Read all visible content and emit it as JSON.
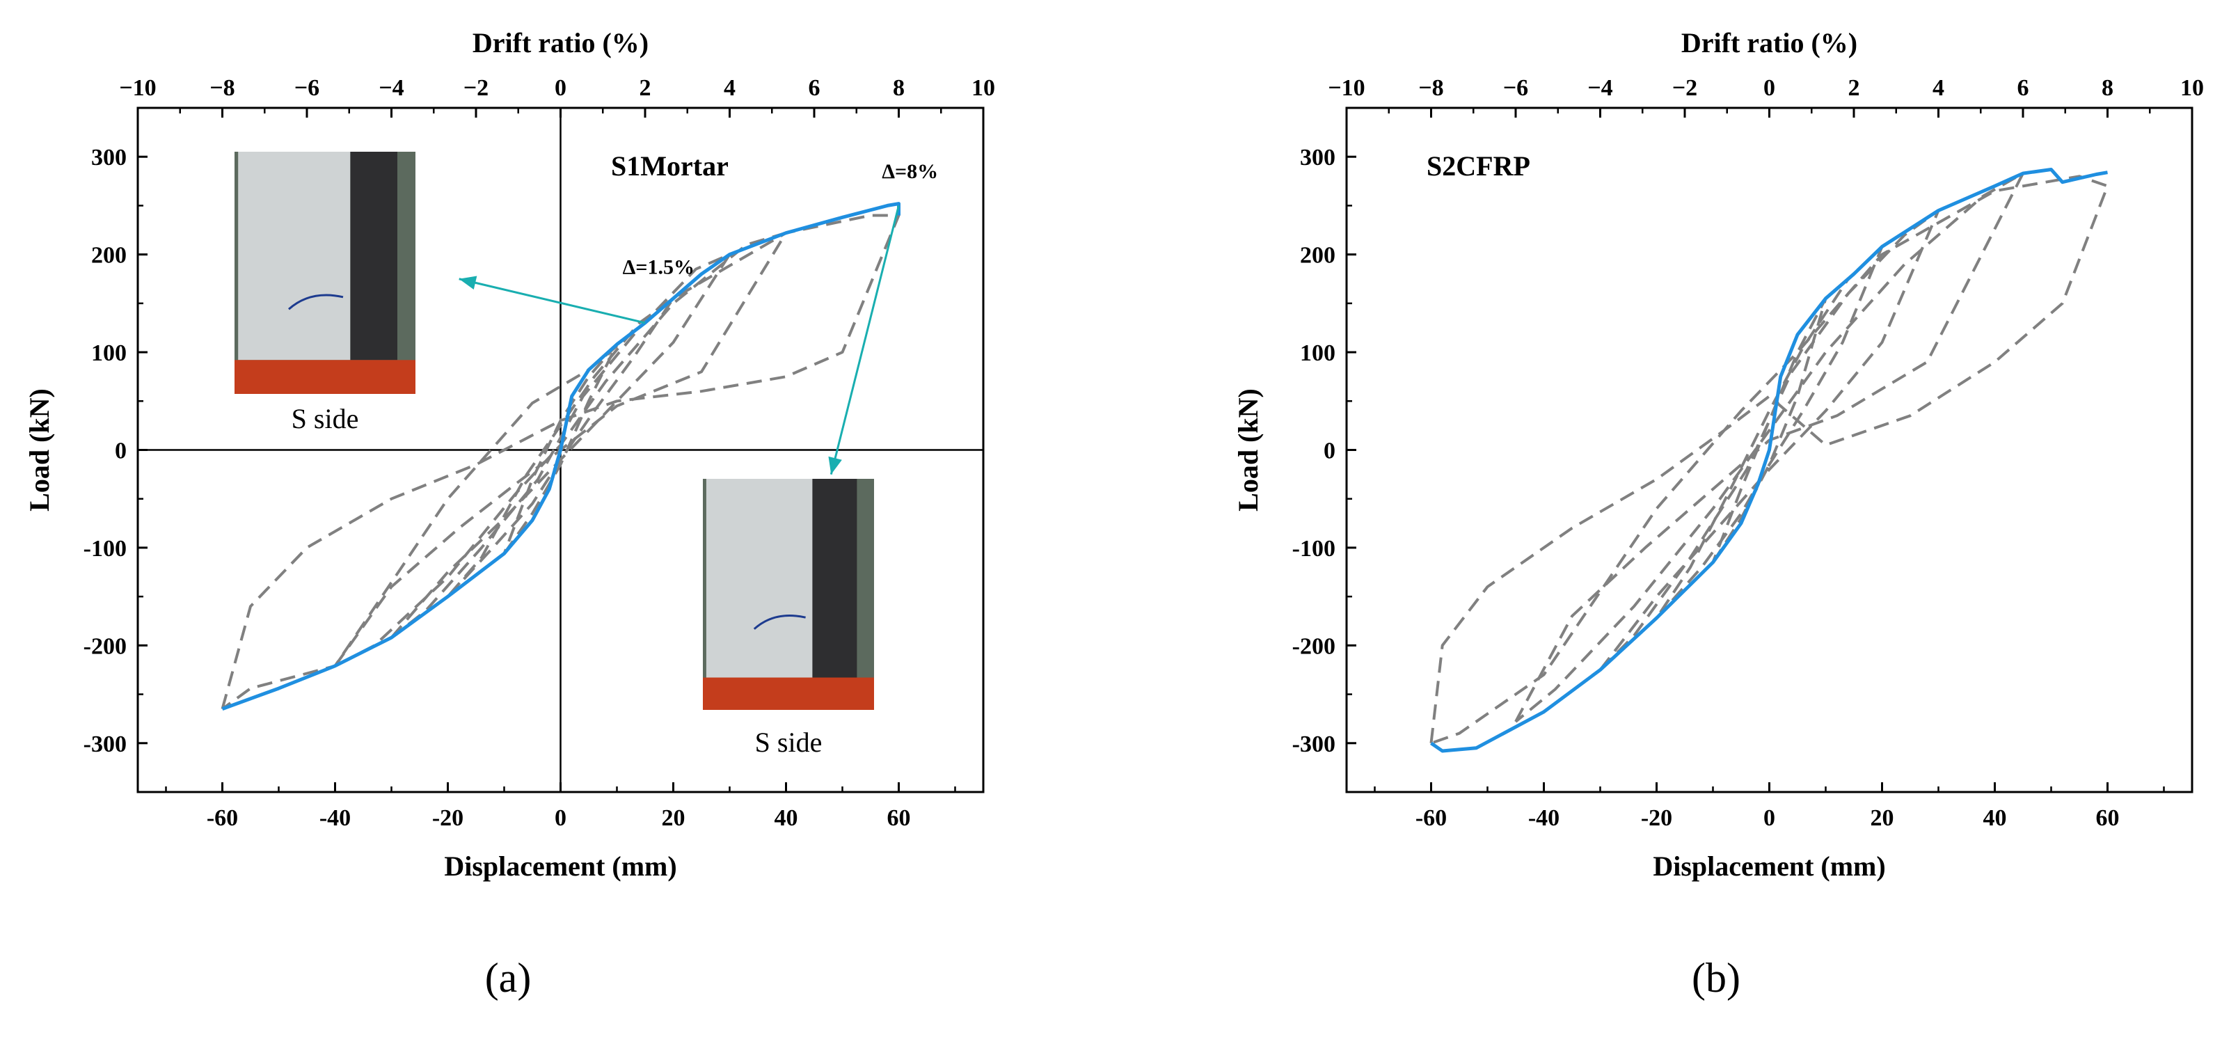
{
  "colors": {
    "envelope": "#1f8fe0",
    "hysteresis": "#808080",
    "arrow": "#19aeb0",
    "axis": "#000000"
  },
  "chart_data": [
    {
      "type": "line",
      "panel_label": "(a)",
      "specimen_label": "S1Mortar",
      "xlabel": "Displacement (mm)",
      "ylabel": "Load (kN)",
      "x2label": "Drift ratio (%)",
      "xlim": [
        -75,
        75
      ],
      "ylim": [
        -350,
        350
      ],
      "x2lim": [
        -10,
        10
      ],
      "xticks": [
        "-60",
        "-40",
        "-20",
        "0",
        "20",
        "40",
        "60"
      ],
      "yticks": [
        "-300",
        "-200",
        "-100",
        "0",
        "100",
        "200",
        "300"
      ],
      "x2ticks": [
        "−10",
        "−8",
        "−6",
        "−4",
        "−2",
        "0",
        "2",
        "4",
        "6",
        "8",
        "10"
      ],
      "zero_lines": true,
      "annotations": [
        {
          "text": "Δ=8%",
          "x": 57,
          "y": 278
        },
        {
          "text": "Δ=1.5%",
          "x": 11,
          "y": 180
        }
      ],
      "photos": [
        {
          "caption": "S side",
          "icon": "column-damage-photo",
          "arrow_from": [
            15,
            130
          ],
          "arrow_to": [
            -18,
            175
          ]
        },
        {
          "caption": "S side",
          "icon": "column-damage-photo",
          "arrow_from": [
            60,
            250
          ],
          "arrow_to": [
            48,
            -25
          ]
        }
      ],
      "series": [
        {
          "name": "Envelope",
          "style": "solid",
          "x": [
            -60,
            -50,
            -40,
            -30,
            -20,
            -10,
            -5,
            -2,
            0,
            2,
            5,
            10,
            15,
            20,
            25,
            30,
            40,
            50,
            58,
            60,
            60
          ],
          "y": [
            -265,
            -244,
            -221,
            -192,
            -150,
            -106,
            -72,
            -40,
            0,
            55,
            82,
            108,
            130,
            155,
            180,
            200,
            222,
            238,
            250,
            252,
            240
          ]
        },
        {
          "name": "Hysteresis loops",
          "style": "dashed",
          "loops": [
            {
              "x": [
                -60,
                -55,
                -45,
                -30,
                -15,
                -5,
                0,
                10,
                25,
                40,
                50,
                60,
                55,
                40,
                20,
                5,
                -5,
                -20,
                -40,
                -55,
                -60
              ],
              "y": [
                -265,
                -160,
                -100,
                -50,
                -15,
                15,
                30,
                50,
                60,
                75,
                100,
                240,
                240,
                222,
                155,
                82,
                48,
                -50,
                -221,
                -244,
                -265
              ]
            },
            {
              "x": [
                -40,
                -30,
                -18,
                -8,
                0,
                10,
                25,
                40,
                33,
                20,
                8,
                0,
                -8,
                -20,
                -33,
                -40
              ],
              "y": [
                -221,
                -140,
                -80,
                -35,
                0,
                45,
                80,
                222,
                210,
                150,
                70,
                5,
                -45,
                -130,
                -200,
                -221
              ]
            },
            {
              "x": [
                -30,
                -20,
                -10,
                0,
                10,
                20,
                30,
                24,
                14,
                4,
                -4,
                -14,
                -24,
                -30
              ],
              "y": [
                -192,
                -125,
                -70,
                -10,
                50,
                110,
                200,
                185,
                125,
                55,
                -30,
                -100,
                -165,
                -192
              ]
            },
            {
              "x": [
                -20,
                -12,
                -5,
                0,
                6,
                13,
                20,
                14,
                6,
                0,
                -6,
                -14,
                -20
              ],
              "y": [
                -150,
                -100,
                -55,
                -10,
                40,
                95,
                155,
                130,
                75,
                25,
                -25,
                -110,
                -150
              ]
            },
            {
              "x": [
                -10,
                -5,
                0,
                5,
                10,
                5,
                0,
                -5,
                -10
              ],
              "y": [
                -106,
                -65,
                -15,
                50,
                108,
                75,
                30,
                -30,
                -106
              ]
            }
          ]
        }
      ]
    },
    {
      "type": "line",
      "panel_label": "(b)",
      "specimen_label": "S2CFRP",
      "xlabel": "Displacement (mm)",
      "ylabel": "Load (kN)",
      "x2label": "Drift ratio (%)",
      "xlim": [
        -75,
        75
      ],
      "ylim": [
        -350,
        350
      ],
      "x2lim": [
        -10,
        10
      ],
      "xticks": [
        "-60",
        "-40",
        "-20",
        "0",
        "20",
        "40",
        "60"
      ],
      "yticks": [
        "-300",
        "-200",
        "-100",
        "0",
        "100",
        "200",
        "300"
      ],
      "x2ticks": [
        "−10",
        "−8",
        "−6",
        "−4",
        "−2",
        "0",
        "2",
        "4",
        "6",
        "8",
        "10"
      ],
      "zero_lines": false,
      "annotations": [],
      "photos": [],
      "series": [
        {
          "name": "Envelope",
          "style": "solid",
          "x": [
            -60,
            -58,
            -52,
            -40,
            -30,
            -20,
            -10,
            -5,
            -2,
            0,
            2,
            5,
            10,
            15,
            20,
            30,
            40,
            45,
            50,
            52,
            55,
            58,
            60
          ],
          "y": [
            -300,
            -308,
            -305,
            -268,
            -225,
            -172,
            -115,
            -75,
            -35,
            0,
            75,
            118,
            155,
            180,
            208,
            245,
            270,
            283,
            287,
            274,
            278,
            282,
            284
          ]
        },
        {
          "name": "Hysteresis loops",
          "style": "dashed",
          "loops": [
            {
              "x": [
                -60,
                -58,
                -50,
                -35,
                -20,
                -8,
                0,
                10,
                25,
                40,
                52,
                60,
                55,
                40,
                20,
                5,
                -5,
                -20,
                -40,
                -55,
                -60
              ],
              "y": [
                -300,
                -200,
                -140,
                -80,
                -30,
                20,
                55,
                5,
                35,
                90,
                150,
                270,
                280,
                265,
                200,
                100,
                40,
                -60,
                -230,
                -290,
                -300
              ]
            },
            {
              "x": [
                -45,
                -35,
                -22,
                -10,
                0,
                12,
                28,
                45,
                38,
                24,
                10,
                0,
                -10,
                -24,
                -38,
                -45
              ],
              "y": [
                -278,
                -170,
                -100,
                -40,
                10,
                35,
                90,
                283,
                260,
                190,
                100,
                20,
                -60,
                -160,
                -245,
                -278
              ]
            },
            {
              "x": [
                -30,
                -20,
                -10,
                0,
                10,
                20,
                30,
                24,
                14,
                4,
                -4,
                -14,
                -24,
                -30
              ],
              "y": [
                -225,
                -150,
                -85,
                -20,
                40,
                110,
                245,
                220,
                160,
                80,
                -20,
                -110,
                -190,
                -225
              ]
            },
            {
              "x": [
                -20,
                -12,
                -5,
                0,
                6,
                13,
                20,
                14,
                6,
                0,
                -6,
                -14,
                -20
              ],
              "y": [
                -172,
                -120,
                -65,
                -15,
                40,
                110,
                208,
                175,
                105,
                40,
                -30,
                -120,
                -172
              ]
            },
            {
              "x": [
                -10,
                -5,
                0,
                5,
                10,
                5,
                0,
                -5,
                -10
              ],
              "y": [
                -115,
                -70,
                -15,
                55,
                155,
                100,
                30,
                -40,
                -115
              ]
            }
          ]
        }
      ]
    }
  ]
}
